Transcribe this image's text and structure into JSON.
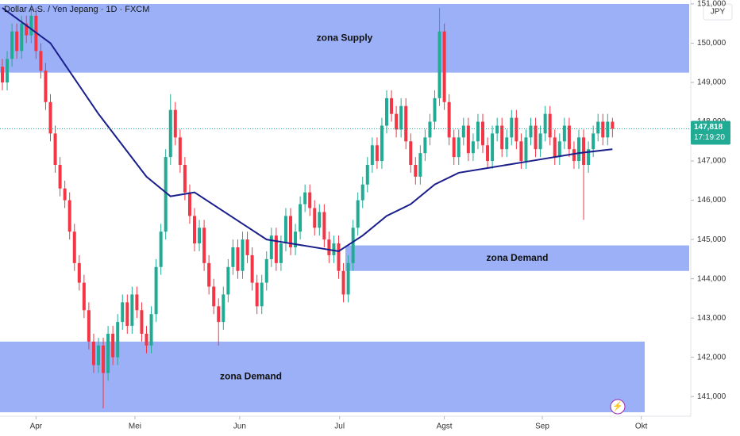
{
  "chart_data": {
    "type": "candlestick",
    "title": "Dollar A.S. / Yen Jepang · 1D · FXCM",
    "currency": "JPY",
    "countdown": "17:19:20",
    "last_price": {
      "value": 147.818,
      "label": "147,818"
    },
    "up_color": "#22ab94",
    "down_color": "#f23645",
    "open": [
      149.4,
      149.0,
      149.6,
      150.3,
      149.8,
      150.5,
      150.2,
      150.7,
      149.8,
      149.3,
      148.5,
      147.7,
      146.9,
      146.3,
      146.0,
      145.2,
      144.4,
      143.9,
      143.2,
      142.4,
      141.8,
      142.3,
      141.6,
      142.6,
      142.0,
      142.9,
      143.4,
      142.8,
      143.6,
      143.2,
      142.6,
      142.3,
      143.1,
      144.3,
      145.2,
      147.1,
      148.3,
      147.6,
      146.9,
      146.2,
      145.6,
      144.9,
      145.3,
      144.4,
      143.8,
      143.3,
      142.9,
      143.6,
      144.3,
      144.8,
      144.2,
      145.0,
      144.6,
      143.9,
      143.3,
      143.9,
      144.5,
      145.1,
      144.4,
      144.9,
      145.6,
      144.8,
      145.2,
      145.9,
      146.2,
      145.8,
      145.3,
      145.7,
      145.0,
      144.6,
      144.9,
      144.2,
      143.6,
      144.4,
      145.3,
      146.0,
      146.4,
      146.9,
      147.4,
      147.0,
      147.9,
      148.6,
      148.2,
      147.8,
      148.4,
      147.5,
      146.9,
      146.6,
      147.2,
      147.6,
      148.0,
      148.6,
      150.3,
      148.5,
      147.6,
      147.1,
      147.6,
      147.9,
      147.2,
      147.5,
      148.0,
      147.4,
      147.0,
      147.7,
      147.9,
      147.3,
      147.6,
      148.1,
      147.5,
      147.0,
      147.6,
      147.9,
      147.3,
      147.7,
      148.2,
      147.6,
      147.1,
      147.5,
      147.9,
      147.3,
      147.0,
      147.6,
      146.9,
      147.3,
      147.7,
      148.0,
      147.6,
      148.0
    ],
    "high": [
      149.6,
      149.8,
      150.5,
      150.5,
      150.7,
      150.7,
      151.0,
      150.9,
      150.0,
      149.5,
      148.7,
      147.9,
      147.1,
      146.5,
      146.2,
      145.4,
      144.6,
      144.1,
      143.4,
      142.6,
      142.5,
      142.5,
      142.8,
      142.8,
      143.1,
      143.6,
      143.6,
      143.8,
      143.8,
      143.4,
      142.8,
      143.3,
      144.5,
      145.4,
      147.3,
      148.7,
      148.5,
      147.8,
      147.1,
      146.4,
      145.8,
      145.5,
      145.5,
      144.6,
      144.0,
      143.5,
      143.8,
      144.5,
      145.0,
      145.0,
      145.2,
      145.2,
      144.8,
      144.1,
      144.1,
      144.7,
      145.3,
      145.3,
      145.1,
      145.8,
      145.8,
      145.4,
      146.1,
      146.4,
      146.4,
      146.0,
      145.9,
      145.9,
      145.2,
      145.1,
      145.1,
      144.4,
      144.6,
      145.5,
      146.2,
      146.6,
      147.1,
      147.6,
      147.6,
      148.1,
      148.8,
      148.8,
      148.4,
      148.6,
      148.6,
      147.7,
      147.1,
      147.4,
      147.8,
      148.2,
      148.8,
      150.9,
      150.5,
      148.7,
      147.8,
      147.8,
      148.1,
      148.1,
      147.7,
      148.2,
      148.2,
      147.6,
      147.9,
      148.1,
      148.1,
      147.8,
      148.3,
      148.3,
      147.7,
      147.8,
      148.1,
      148.1,
      147.9,
      148.4,
      148.4,
      147.8,
      147.7,
      148.1,
      148.1,
      147.5,
      147.8,
      147.8,
      147.5,
      147.9,
      148.2,
      148.2,
      148.2,
      148.1
    ],
    "low": [
      148.8,
      148.8,
      149.4,
      149.6,
      149.6,
      150.0,
      150.0,
      149.6,
      149.1,
      148.3,
      147.5,
      146.7,
      146.1,
      145.8,
      145.0,
      144.2,
      143.7,
      143.0,
      142.2,
      141.6,
      141.6,
      140.7,
      141.4,
      141.8,
      141.8,
      142.7,
      142.6,
      142.6,
      143.0,
      142.4,
      142.1,
      142.1,
      142.9,
      144.1,
      145.0,
      146.9,
      147.4,
      146.7,
      146.0,
      145.4,
      144.7,
      144.7,
      144.2,
      143.6,
      143.1,
      142.3,
      142.7,
      143.4,
      144.1,
      144.0,
      144.0,
      144.4,
      143.7,
      143.1,
      143.1,
      143.7,
      144.3,
      144.2,
      144.2,
      144.7,
      144.6,
      144.6,
      145.0,
      145.7,
      145.6,
      145.1,
      145.1,
      144.8,
      144.4,
      144.4,
      144.0,
      143.4,
      143.4,
      144.2,
      145.1,
      145.8,
      146.2,
      146.7,
      146.8,
      146.8,
      147.7,
      148.0,
      147.6,
      147.6,
      147.3,
      146.7,
      146.4,
      146.4,
      147.0,
      147.4,
      147.8,
      148.4,
      148.3,
      147.4,
      146.9,
      146.9,
      147.4,
      147.0,
      147.0,
      147.3,
      147.2,
      146.8,
      146.8,
      147.5,
      147.1,
      147.1,
      147.4,
      147.3,
      146.8,
      146.8,
      147.4,
      147.1,
      147.1,
      147.5,
      147.4,
      146.9,
      146.9,
      147.3,
      147.1,
      146.8,
      146.8,
      145.5,
      146.7,
      147.1,
      147.5,
      147.4,
      147.4,
      147.6
    ],
    "close": [
      149.0,
      149.6,
      150.3,
      149.8,
      150.5,
      150.2,
      150.7,
      149.8,
      149.3,
      148.5,
      147.7,
      146.9,
      146.3,
      146.0,
      145.2,
      144.4,
      143.9,
      143.2,
      142.4,
      141.8,
      142.3,
      141.6,
      142.6,
      142.0,
      142.9,
      143.4,
      142.8,
      143.6,
      143.2,
      142.6,
      142.3,
      143.1,
      144.3,
      145.2,
      147.1,
      148.3,
      147.6,
      146.9,
      146.2,
      145.6,
      144.9,
      145.3,
      144.4,
      143.8,
      143.3,
      142.9,
      143.6,
      144.3,
      144.8,
      144.2,
      145.0,
      144.6,
      143.9,
      143.3,
      143.9,
      144.5,
      145.1,
      144.4,
      144.9,
      145.6,
      144.8,
      145.2,
      145.9,
      146.2,
      145.8,
      145.3,
      145.7,
      145.0,
      144.6,
      144.9,
      144.2,
      143.6,
      144.4,
      145.3,
      146.0,
      146.4,
      146.9,
      147.4,
      147.0,
      147.9,
      148.6,
      148.2,
      147.8,
      148.4,
      147.5,
      146.9,
      146.6,
      147.2,
      147.6,
      148.0,
      148.6,
      150.3,
      148.5,
      147.6,
      147.1,
      147.6,
      147.9,
      147.2,
      147.5,
      148.0,
      147.4,
      147.0,
      147.7,
      147.9,
      147.3,
      147.6,
      148.1,
      147.5,
      147.0,
      147.6,
      147.9,
      147.3,
      147.7,
      148.2,
      147.6,
      147.1,
      147.5,
      147.9,
      147.3,
      147.0,
      147.6,
      146.9,
      147.3,
      147.7,
      148.0,
      147.6,
      148.0,
      147.818
    ],
    "lines": [
      {
        "color": "#1a1f8c",
        "x": [
          0,
          10,
          20,
          30,
          35,
          40,
          50,
          55,
          60,
          70,
          75,
          80,
          85,
          90,
          95,
          100,
          110,
          120,
          127
        ],
        "values": [
          150.9,
          150.0,
          148.2,
          146.6,
          146.1,
          146.2,
          145.4,
          145.0,
          144.9,
          144.7,
          145.1,
          145.6,
          145.9,
          146.4,
          146.7,
          146.8,
          147.0,
          147.2,
          147.3
        ]
      }
    ],
    "zones": [
      {
        "label": "zona Supply",
        "from": 149.25,
        "to": 151.0,
        "color": "#8aa2f5"
      },
      {
        "label": "zona Demand",
        "from": 144.2,
        "to": 144.85,
        "color": "#8aa2f5"
      },
      {
        "label": "zona Demand",
        "from": 140.6,
        "to": 142.4,
        "color": "#8aa2f5"
      }
    ],
    "ylim": [
      140.5,
      151.1
    ],
    "yticks": [
      {
        "value": 141,
        "label": "141,000"
      },
      {
        "value": 142,
        "label": "142,000"
      },
      {
        "value": 143,
        "label": "143,000"
      },
      {
        "value": 144,
        "label": "144,000"
      },
      {
        "value": 145,
        "label": "145,000"
      },
      {
        "value": 146,
        "label": "146,000"
      },
      {
        "value": 147,
        "label": "147,000"
      },
      {
        "value": 148,
        "label": "148,000"
      },
      {
        "value": 149,
        "label": "149,000"
      },
      {
        "value": 150,
        "label": "150,000"
      },
      {
        "value": 151,
        "label": "151,000"
      }
    ],
    "xticks": [
      {
        "value": 7,
        "label": "Apr"
      },
      {
        "value": 27.6,
        "label": "Mei"
      },
      {
        "value": 49.4,
        "label": "Jun"
      },
      {
        "value": 70.2,
        "label": "Jul"
      },
      {
        "value": 92,
        "label": "Agst"
      },
      {
        "value": 112.4,
        "label": "Sep"
      },
      {
        "value": 133,
        "label": "Okt"
      }
    ]
  }
}
